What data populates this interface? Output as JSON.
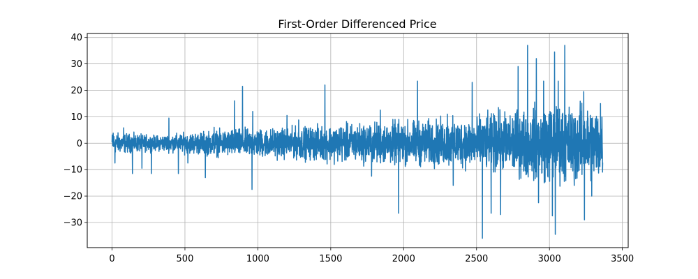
{
  "chart_data": {
    "type": "line",
    "title": "First-Order Differenced Price",
    "xlabel": "",
    "ylabel": "",
    "xlim": [
      -170,
      3540
    ],
    "ylim": [
      -39.5,
      41.5
    ],
    "xticks": [
      0,
      500,
      1000,
      1500,
      2000,
      2500,
      3000,
      3500
    ],
    "yticks": [
      -30,
      -20,
      -10,
      0,
      10,
      20,
      30,
      40
    ],
    "xtick_labels": [
      "0",
      "500",
      "1000",
      "1500",
      "2000",
      "2500",
      "3000",
      "3500"
    ],
    "ytick_labels": [
      "−30",
      "−20",
      "−10",
      "0",
      "10",
      "20",
      "30",
      "40"
    ],
    "grid": true,
    "legend": "none",
    "color": "#1f77b4",
    "series": [
      {
        "x_start": 0,
        "x_end": 3365,
        "envelope": [
          [
            0,
            3.5
          ],
          [
            300,
            2.5
          ],
          [
            800,
            4.5
          ],
          [
            1200,
            5
          ],
          [
            1500,
            6
          ],
          [
            1900,
            7
          ],
          [
            2400,
            8
          ],
          [
            2700,
            10
          ],
          [
            3000,
            13
          ],
          [
            3365,
            12
          ]
        ],
        "spikes": [
          {
            "x": 8,
            "y": 3.8
          },
          {
            "x": 20,
            "y": -7.5
          },
          {
            "x": 80,
            "y": 5.8
          },
          {
            "x": 140,
            "y": -11.5
          },
          {
            "x": 205,
            "y": -9.5
          },
          {
            "x": 270,
            "y": -11.5
          },
          {
            "x": 390,
            "y": 9.5
          },
          {
            "x": 455,
            "y": -11.5
          },
          {
            "x": 520,
            "y": -7.5
          },
          {
            "x": 640,
            "y": -13
          },
          {
            "x": 700,
            "y": 6
          },
          {
            "x": 840,
            "y": 16
          },
          {
            "x": 895,
            "y": 21.5
          },
          {
            "x": 960,
            "y": -17.5
          },
          {
            "x": 965,
            "y": 12
          },
          {
            "x": 1200,
            "y": 10.5
          },
          {
            "x": 1280,
            "y": 8.8
          },
          {
            "x": 1460,
            "y": 22
          },
          {
            "x": 1780,
            "y": -12.5
          },
          {
            "x": 1840,
            "y": 12.5
          },
          {
            "x": 1965,
            "y": -26.5
          },
          {
            "x": 2095,
            "y": 23.5
          },
          {
            "x": 2300,
            "y": 11
          },
          {
            "x": 2340,
            "y": -16
          },
          {
            "x": 2470,
            "y": 23
          },
          {
            "x": 2540,
            "y": -36
          },
          {
            "x": 2600,
            "y": -26.5
          },
          {
            "x": 2650,
            "y": 13.5
          },
          {
            "x": 2665,
            "y": -27
          },
          {
            "x": 2785,
            "y": 29
          },
          {
            "x": 2850,
            "y": 37
          },
          {
            "x": 2910,
            "y": 32
          },
          {
            "x": 2925,
            "y": -22.5
          },
          {
            "x": 2960,
            "y": 23.5
          },
          {
            "x": 3020,
            "y": -27.5
          },
          {
            "x": 3035,
            "y": 34.5
          },
          {
            "x": 3040,
            "y": -34.5
          },
          {
            "x": 3060,
            "y": 23.5
          },
          {
            "x": 3105,
            "y": 37
          },
          {
            "x": 3170,
            "y": -16
          },
          {
            "x": 3235,
            "y": 19.5
          },
          {
            "x": 3240,
            "y": -29
          },
          {
            "x": 3290,
            "y": -20
          },
          {
            "x": 3350,
            "y": 15
          }
        ]
      }
    ]
  }
}
